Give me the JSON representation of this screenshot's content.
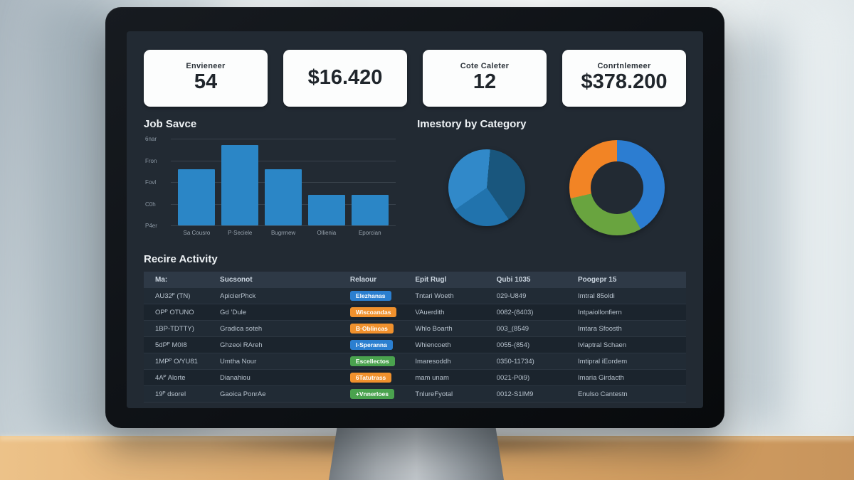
{
  "kpis": [
    {
      "label": "Envieneer",
      "value": "54"
    },
    {
      "label": "",
      "value": "$16.420"
    },
    {
      "label": "Cote Caleter",
      "value": "12"
    },
    {
      "label": "Conrtnlemeer",
      "value": "$378.200"
    }
  ],
  "sections": {
    "bar_title": "Job Savce",
    "pie_title": "Imestory by Category",
    "table_title": "Recire Activity"
  },
  "chart_data": [
    {
      "type": "bar",
      "title": "Job Savce",
      "categories": [
        "Sa Cousro",
        "P·Seciele",
        "Bugrrnew",
        "Ollienia",
        "Eporcian"
      ],
      "values": [
        2.6,
        3.7,
        2.6,
        1.4,
        1.4
      ],
      "ylim": [
        0,
        4
      ],
      "ytick_labels_top_to_bottom": [
        "6nar",
        "Fron",
        "Fovl",
        "C0h",
        "P4er"
      ],
      "bar_color": "#2b86c6",
      "grid": true,
      "legend": false
    },
    {
      "type": "pie",
      "title": "Imestory by Category",
      "start_angle_deg": 5,
      "slices": [
        {
          "label": "segment-dark-blue",
          "pct": 39,
          "color": "#19567d"
        },
        {
          "label": "segment-medium-blue",
          "pct": 25,
          "color": "#2173ad"
        },
        {
          "label": "segment-light-blue",
          "pct": 36,
          "color": "#3189c9"
        }
      ]
    },
    {
      "type": "donut",
      "title": "Imestory by Category",
      "start_angle_deg": 0,
      "slices": [
        {
          "label": "segment-blue",
          "pct": 41.7,
          "color": "#2c7dd1"
        },
        {
          "label": "segment-green",
          "pct": 29.7,
          "color": "#69a43f"
        },
        {
          "label": "segment-orange",
          "pct": 28.6,
          "color": "#f28425"
        }
      ]
    }
  ],
  "table": {
    "title": "Recire Activity",
    "columns": [
      "Ma:",
      "Sucsonot",
      "Relaour",
      "Epit Rugl",
      "Qubi 1035",
      "Poogepr 15"
    ],
    "rows": [
      {
        "ma": "AU32ᴾ (TN)",
        "sucsonot": "ApicierPhck",
        "badge": {
          "text": "Elezhanas",
          "color": "#2b7fd0"
        },
        "epit": "Tntari Woeth",
        "qubi": "029-U849",
        "poogepr": "Imtral 85oldi"
      },
      {
        "ma": "OPᴾ OTUNO",
        "sucsonot": "Gd ’Dule",
        "badge": {
          "text": "Wiscoandas",
          "color": "#f0912d"
        },
        "epit": "VAuerdith",
        "qubi": "0082-(8403)",
        "poogepr": "Intpaiollonfiern"
      },
      {
        "ma": "1BP-TDTTY)",
        "sucsonot": "Gradica soteh",
        "badge": {
          "text": "B·Oblincas",
          "color": "#f0912d"
        },
        "epit": "Whlo Boarth",
        "qubi": "003_(8549",
        "poogepr": "Imtara Sfoosth"
      },
      {
        "ma": "5dPᴾ M0I8",
        "sucsonot": "Ghzeoi RAreh",
        "badge": {
          "text": "I·Speranna",
          "color": "#2b7fd0"
        },
        "epit": "Whiencoeth",
        "qubi": "0055-(854)",
        "poogepr": "Ivlaptral Schaen"
      },
      {
        "ma": "1MPᴾ O/YU81",
        "sucsonot": "Umtha Nour",
        "badge": {
          "text": "Escellectos",
          "color": "#4aa24e"
        },
        "epit": "Imaresoddh",
        "qubi": "0350-11734)",
        "poogepr": "Imtipral iEordem"
      },
      {
        "ma": "4Aᴾ Alorte",
        "sucsonot": "Dianahiou",
        "badge": {
          "text": "6Tatutrass",
          "color": "#f0912d"
        },
        "epit": "mam unam",
        "qubi": "0021-P0i9)",
        "poogepr": "Imaria Girdacth"
      },
      {
        "ma": "19ᴾ dsorel",
        "sucsonot": "Gaoica PonrAe",
        "badge": {
          "text": "+Vnnerloes",
          "color": "#4aa24e"
        },
        "epit": "TnlureFyotal",
        "qubi": "0012-S1IM9",
        "poogepr": "Enulso Cantestn"
      }
    ]
  },
  "colors": {
    "screen_bg": "#222a33",
    "bar_blue": "#2b86c6",
    "badge_blue": "#2b7fd0",
    "badge_orange": "#f0912d",
    "badge_green": "#4aa24e",
    "table_header_bg": "#2e3946"
  }
}
